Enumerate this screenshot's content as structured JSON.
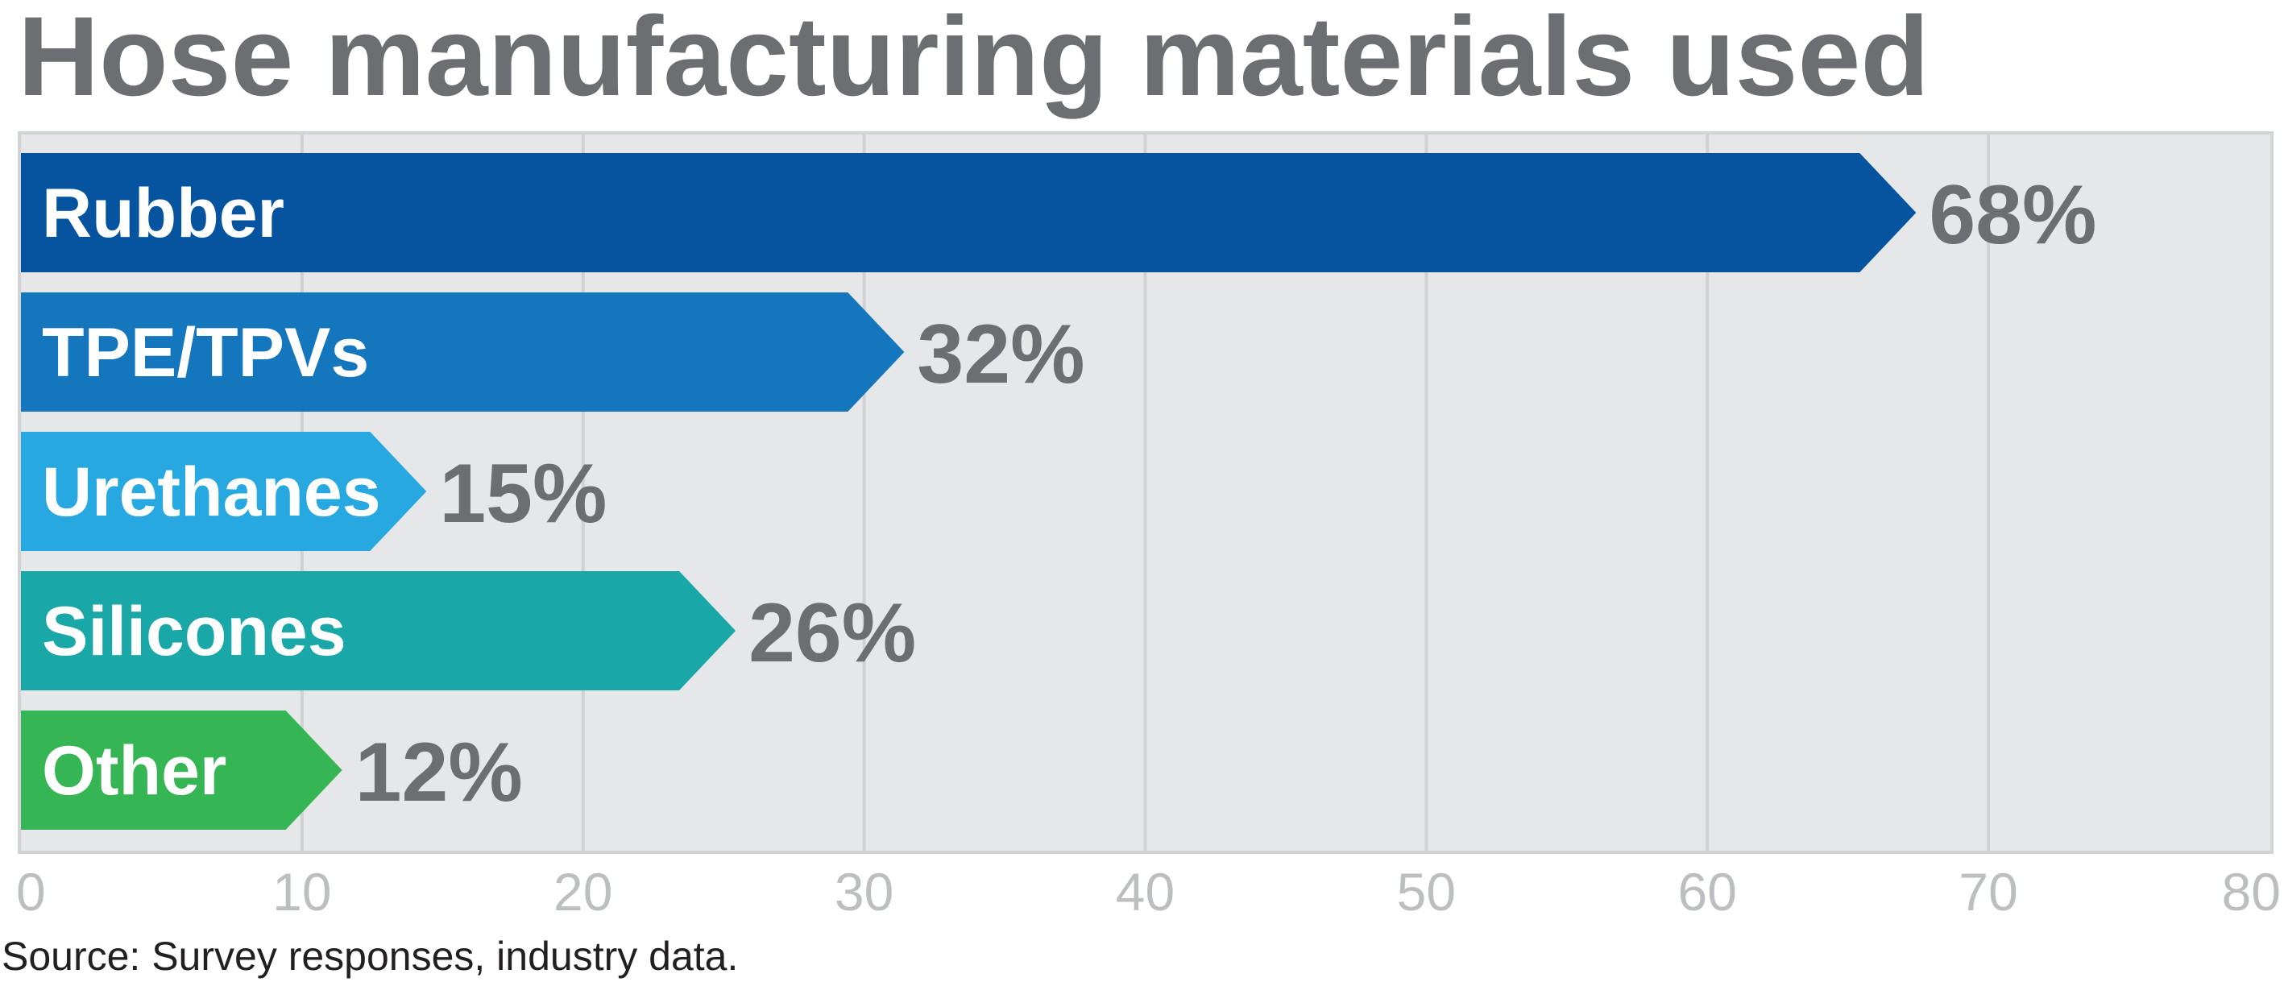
{
  "chart_data": {
    "type": "bar",
    "orientation": "horizontal",
    "title": "Hose manufacturing materials used",
    "categories": [
      "Rubber",
      "TPE/TPVs",
      "Urethanes",
      "Silicones",
      "Other"
    ],
    "values": [
      68,
      32,
      15,
      26,
      12
    ],
    "value_labels": [
      "68%",
      "32%",
      "15%",
      "26%",
      "12%"
    ],
    "colors": [
      "#0653a0",
      "#1477bd",
      "#27a8e1",
      "#19a7a8",
      "#35b553"
    ],
    "xlim": [
      0,
      80
    ],
    "xticks": [
      0,
      10,
      20,
      30,
      40,
      50,
      60,
      70,
      80
    ],
    "grid": true,
    "xlabel": "",
    "ylabel": "",
    "source": "Source: Survey responses, industry data."
  }
}
